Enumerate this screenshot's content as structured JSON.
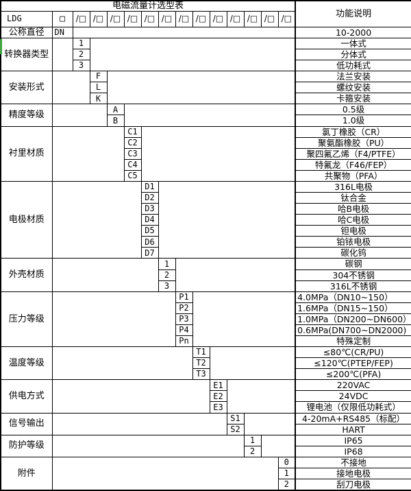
{
  "title": "电磁流量计选型表",
  "right_header": "功能说明",
  "model_row": {
    "model": "LDG",
    "box": "□",
    "slash_box": "/□",
    "slash_count": 13
  },
  "sections": [
    {
      "label": "公称直径",
      "col": 1,
      "rows": [
        {
          "code": "DN",
          "desc": "10-2000"
        }
      ]
    },
    {
      "label": "转换器类型",
      "col": 2,
      "rows": [
        {
          "code": "1",
          "desc": "一体式"
        },
        {
          "code": "2",
          "desc": "分体式"
        },
        {
          "code": "3",
          "desc": "低功耗式"
        }
      ]
    },
    {
      "label": "安装形式",
      "col": 3,
      "rows": [
        {
          "code": "F",
          "desc": "法兰安装"
        },
        {
          "code": "L",
          "desc": "螺纹安装"
        },
        {
          "code": "K",
          "desc": "卡箍安装"
        }
      ]
    },
    {
      "label": "精度等级",
      "col": 4,
      "rows": [
        {
          "code": "A",
          "desc": "0.5级"
        },
        {
          "code": "B",
          "desc": "1.0级"
        }
      ]
    },
    {
      "label": "衬里材质",
      "col": 5,
      "rows": [
        {
          "code": "C1",
          "desc": "氯丁橡胶（CR）"
        },
        {
          "code": "C2",
          "desc": "聚氨酯橡胶（PU）"
        },
        {
          "code": "C3",
          "desc": "聚四氟乙烯（F4/PTFE）"
        },
        {
          "code": "C4",
          "desc": "特氟龙（F46/FEP）"
        },
        {
          "code": "C5",
          "desc": "共聚物（PFA）"
        }
      ]
    },
    {
      "label": "电极材质",
      "col": 6,
      "rows": [
        {
          "code": "D1",
          "desc": "316L电极"
        },
        {
          "code": "D2",
          "desc": "钛合金"
        },
        {
          "code": "D3",
          "desc": "哈B电极"
        },
        {
          "code": "D4",
          "desc": "哈C电极"
        },
        {
          "code": "D5",
          "desc": "钽电极"
        },
        {
          "code": "D6",
          "desc": "铂铱电极"
        },
        {
          "code": "D7",
          "desc": "碳化钨"
        }
      ]
    },
    {
      "label": "外壳材质",
      "col": 7,
      "rows": [
        {
          "code": "1",
          "desc": "碳钢"
        },
        {
          "code": "2",
          "desc": "304不锈钢"
        },
        {
          "code": "3",
          "desc": "316L不锈钢"
        }
      ]
    },
    {
      "label": "压力等级",
      "col": 8,
      "rows": [
        {
          "code": "P1",
          "desc": "4.0MPa（DN10~150）",
          "align": "left"
        },
        {
          "code": "P2",
          "desc": "1.6MPa（DN15~150）",
          "align": "left"
        },
        {
          "code": "P3",
          "desc": "1.0MPa（DN200~DN600）",
          "align": "left"
        },
        {
          "code": "P4",
          "desc": "0.6MPa(DN700~DN2000)",
          "align": "left"
        },
        {
          "code": "Pn",
          "desc": "特殊定制"
        }
      ]
    },
    {
      "label": "温度等级",
      "col": 9,
      "rows": [
        {
          "code": "T1",
          "desc": "≤80℃(CR/PU)"
        },
        {
          "code": "T2",
          "desc": "≤120℃(PTEP/FEP)"
        },
        {
          "code": "T3",
          "desc": "≤200℃(PFA)"
        }
      ]
    },
    {
      "label": "供电方式",
      "col": 10,
      "rows": [
        {
          "code": "E1",
          "desc": "220VAC"
        },
        {
          "code": "E2",
          "desc": "24VDC"
        },
        {
          "code": "E3",
          "desc": "锂电池（仅限低功耗式）"
        }
      ]
    },
    {
      "label": "信号输出",
      "col": 11,
      "rows": [
        {
          "code": "S1",
          "desc": "4-20mA+RS485（标配）"
        },
        {
          "code": "S2",
          "desc": "HART"
        }
      ]
    },
    {
      "label": "防护等级",
      "col": 12,
      "rows": [
        {
          "code": "1",
          "desc": "IP65"
        },
        {
          "code": "2",
          "desc": "IP68"
        }
      ]
    },
    {
      "label": "附件",
      "col": 14,
      "rows": [
        {
          "code": "0",
          "desc": "不接地"
        },
        {
          "code": "1",
          "desc": "接地电极"
        },
        {
          "code": "2",
          "desc": "刮刀电极"
        }
      ]
    }
  ]
}
